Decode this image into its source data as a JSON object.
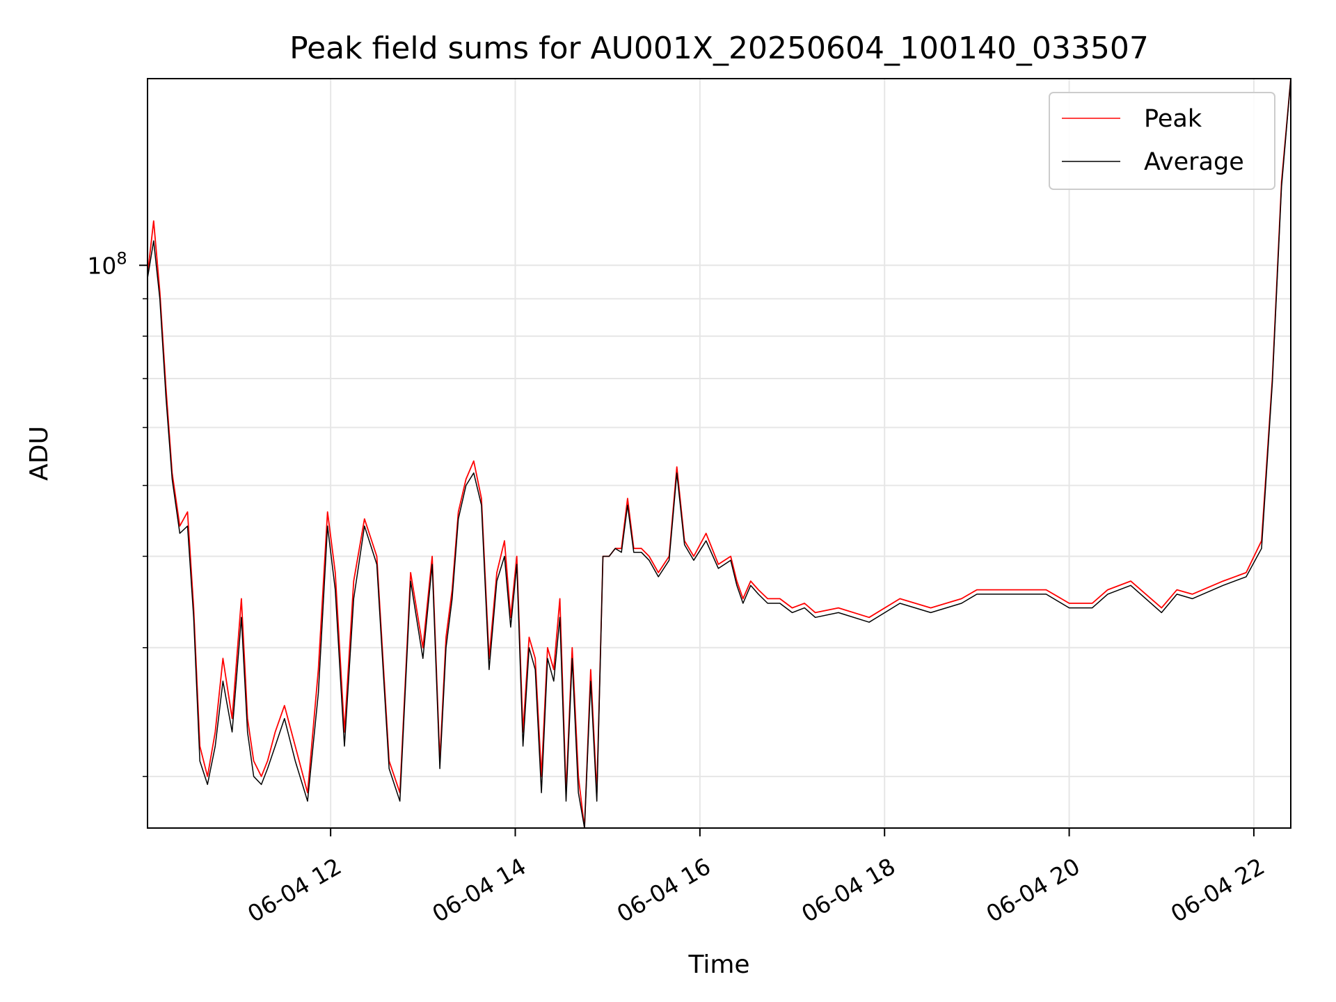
{
  "chart_data": {
    "type": "line",
    "title": "Peak field sums for AU001X_20250604_100140_033507",
    "xlabel": "Time",
    "ylabel": "ADU",
    "x_scale": "time",
    "y_scale": "log",
    "xlim": [
      "06-04 10:01",
      "06-04 22:24"
    ],
    "ylim": [
      17000000,
      180000000
    ],
    "x_ticks": [
      {
        "t": "06-04 12:00",
        "label": "06-04 12"
      },
      {
        "t": "06-04 14:00",
        "label": "06-04 14"
      },
      {
        "t": "06-04 16:00",
        "label": "06-04 16"
      },
      {
        "t": "06-04 18:00",
        "label": "06-04 18"
      },
      {
        "t": "06-04 20:00",
        "label": "06-04 20"
      },
      {
        "t": "06-04 22:00",
        "label": "06-04 22"
      }
    ],
    "y_major_ticks": [
      {
        "value": 100000000,
        "label": "10^8"
      }
    ],
    "grid": true,
    "legend_position": "top-right",
    "series": [
      {
        "name": "Peak",
        "color": "#ff0000",
        "x": [
          "06-04 10:01",
          "06-04 10:05",
          "06-04 10:09",
          "06-04 10:13",
          "06-04 10:17",
          "06-04 10:22",
          "06-04 10:27",
          "06-04 10:31",
          "06-04 10:35",
          "06-04 10:40",
          "06-04 10:45",
          "06-04 10:50",
          "06-04 10:56",
          "06-04 11:02",
          "06-04 11:06",
          "06-04 11:10",
          "06-04 11:15",
          "06-04 11:19",
          "06-04 11:24",
          "06-04 11:30",
          "06-04 11:37",
          "06-04 11:45",
          "06-04 11:52",
          "06-04 11:58",
          "06-04 12:03",
          "06-04 12:09",
          "06-04 12:15",
          "06-04 12:22",
          "06-04 12:30",
          "06-04 12:38",
          "06-04 12:45",
          "06-04 12:52",
          "06-04 13:00",
          "06-04 13:06",
          "06-04 13:11",
          "06-04 13:15",
          "06-04 13:19",
          "06-04 13:23",
          "06-04 13:28",
          "06-04 13:33",
          "06-04 13:38",
          "06-04 13:43",
          "06-04 13:48",
          "06-04 13:53",
          "06-04 13:57",
          "06-04 14:01",
          "06-04 14:05",
          "06-04 14:09",
          "06-04 14:13",
          "06-04 14:17",
          "06-04 14:21",
          "06-04 14:25",
          "06-04 14:29",
          "06-04 14:33",
          "06-04 14:37",
          "06-04 14:41",
          "06-04 14:45",
          "06-04 14:49",
          "06-04 14:53",
          "06-04 14:57",
          "06-04 15:01",
          "06-04 15:05",
          "06-04 15:09",
          "06-04 15:13",
          "06-04 15:17",
          "06-04 15:22",
          "06-04 15:27",
          "06-04 15:33",
          "06-04 15:40",
          "06-04 15:45",
          "06-04 15:50",
          "06-04 15:56",
          "06-04 16:04",
          "06-04 16:12",
          "06-04 16:20",
          "06-04 16:24",
          "06-04 16:28",
          "06-04 16:33",
          "06-04 16:38",
          "06-04 16:44",
          "06-04 16:52",
          "06-04 17:00",
          "06-04 17:08",
          "06-04 17:15",
          "06-04 17:30",
          "06-04 17:50",
          "06-04 18:10",
          "06-04 18:30",
          "06-04 18:50",
          "06-04 19:00",
          "06-04 19:10",
          "06-04 19:30",
          "06-04 19:45",
          "06-04 20:00",
          "06-04 20:15",
          "06-04 20:25",
          "06-04 20:40",
          "06-04 21:00",
          "06-04 21:10",
          "06-04 21:20",
          "06-04 21:40",
          "06-04 21:55",
          "06-04 22:05",
          "06-04 22:12",
          "06-04 22:18",
          "06-04 22:24"
        ],
        "values": [
          97000000,
          115000000,
          92000000,
          68000000,
          52000000,
          44000000,
          46000000,
          34000000,
          22000000,
          20000000,
          23000000,
          29000000,
          24000000,
          35000000,
          24000000,
          21000000,
          20000000,
          21000000,
          23000000,
          25000000,
          22000000,
          19000000,
          28000000,
          46000000,
          38000000,
          23000000,
          37000000,
          45000000,
          40000000,
          21000000,
          19000000,
          38000000,
          30000000,
          40000000,
          21000000,
          31000000,
          36000000,
          46000000,
          51000000,
          54000000,
          48000000,
          29000000,
          38000000,
          42000000,
          33000000,
          40000000,
          23000000,
          31000000,
          29000000,
          20000000,
          30000000,
          28000000,
          35000000,
          19000000,
          30000000,
          20000000,
          17000000,
          28000000,
          19000000,
          40000000,
          40000000,
          41000000,
          41000000,
          48000000,
          41000000,
          41000000,
          40000000,
          38000000,
          40000000,
          53000000,
          42000000,
          40000000,
          43000000,
          39000000,
          40000000,
          37000000,
          35000000,
          37000000,
          36000000,
          35000000,
          35000000,
          34000000,
          34500000,
          33500000,
          34000000,
          33000000,
          35000000,
          34000000,
          35000000,
          36000000,
          36000000,
          36000000,
          36000000,
          34500000,
          34500000,
          36000000,
          37000000,
          34000000,
          36000000,
          35500000,
          37000000,
          38000000,
          42000000,
          70000000,
          130000000,
          180000000
        ]
      },
      {
        "name": "Average",
        "color": "#000000",
        "x": [
          "06-04 10:01",
          "06-04 10:05",
          "06-04 10:09",
          "06-04 10:13",
          "06-04 10:17",
          "06-04 10:22",
          "06-04 10:27",
          "06-04 10:31",
          "06-04 10:35",
          "06-04 10:40",
          "06-04 10:45",
          "06-04 10:50",
          "06-04 10:56",
          "06-04 11:02",
          "06-04 11:06",
          "06-04 11:10",
          "06-04 11:15",
          "06-04 11:19",
          "06-04 11:24",
          "06-04 11:30",
          "06-04 11:37",
          "06-04 11:45",
          "06-04 11:52",
          "06-04 11:58",
          "06-04 12:03",
          "06-04 12:09",
          "06-04 12:15",
          "06-04 12:22",
          "06-04 12:30",
          "06-04 12:38",
          "06-04 12:45",
          "06-04 12:52",
          "06-04 13:00",
          "06-04 13:06",
          "06-04 13:11",
          "06-04 13:15",
          "06-04 13:19",
          "06-04 13:23",
          "06-04 13:28",
          "06-04 13:33",
          "06-04 13:38",
          "06-04 13:43",
          "06-04 13:48",
          "06-04 13:53",
          "06-04 13:57",
          "06-04 14:01",
          "06-04 14:05",
          "06-04 14:09",
          "06-04 14:13",
          "06-04 14:17",
          "06-04 14:21",
          "06-04 14:25",
          "06-04 14:29",
          "06-04 14:33",
          "06-04 14:37",
          "06-04 14:41",
          "06-04 14:45",
          "06-04 14:49",
          "06-04 14:53",
          "06-04 14:57",
          "06-04 15:01",
          "06-04 15:05",
          "06-04 15:09",
          "06-04 15:13",
          "06-04 15:17",
          "06-04 15:22",
          "06-04 15:27",
          "06-04 15:33",
          "06-04 15:40",
          "06-04 15:45",
          "06-04 15:50",
          "06-04 15:56",
          "06-04 16:04",
          "06-04 16:12",
          "06-04 16:20",
          "06-04 16:24",
          "06-04 16:28",
          "06-04 16:33",
          "06-04 16:38",
          "06-04 16:44",
          "06-04 16:52",
          "06-04 17:00",
          "06-04 17:08",
          "06-04 17:15",
          "06-04 17:30",
          "06-04 17:50",
          "06-04 18:10",
          "06-04 18:30",
          "06-04 18:50",
          "06-04 19:00",
          "06-04 19:10",
          "06-04 19:30",
          "06-04 19:45",
          "06-04 20:00",
          "06-04 20:15",
          "06-04 20:25",
          "06-04 20:40",
          "06-04 21:00",
          "06-04 21:10",
          "06-04 21:20",
          "06-04 21:40",
          "06-04 21:55",
          "06-04 22:05",
          "06-04 22:12",
          "06-04 22:18",
          "06-04 22:24"
        ],
        "values": [
          96000000,
          108000000,
          90000000,
          66000000,
          51000000,
          43000000,
          44000000,
          33000000,
          21000000,
          19500000,
          22000000,
          27000000,
          23000000,
          33000000,
          23000000,
          20000000,
          19500000,
          20500000,
          22000000,
          24000000,
          21000000,
          18500000,
          26000000,
          44000000,
          36000000,
          22000000,
          35000000,
          44000000,
          39000000,
          20500000,
          18500000,
          37000000,
          29000000,
          39000000,
          20500000,
          30000000,
          35000000,
          45000000,
          50000000,
          52000000,
          47000000,
          28000000,
          37000000,
          40000000,
          32000000,
          39000000,
          22000000,
          30000000,
          28000000,
          19000000,
          29000000,
          27000000,
          33000000,
          18500000,
          29000000,
          19000000,
          16800000,
          27000000,
          18500000,
          40000000,
          40000000,
          41000000,
          40500000,
          47000000,
          40500000,
          40500000,
          39500000,
          37500000,
          39500000,
          52000000,
          41500000,
          39500000,
          42000000,
          38500000,
          39500000,
          36500000,
          34500000,
          36500000,
          35500000,
          34500000,
          34500000,
          33500000,
          34000000,
          33000000,
          33500000,
          32500000,
          34500000,
          33500000,
          34500000,
          35500000,
          35500000,
          35500000,
          35500000,
          34000000,
          34000000,
          35500000,
          36500000,
          33500000,
          35500000,
          35000000,
          36500000,
          37500000,
          41000000,
          69000000,
          128000000,
          180000000
        ]
      }
    ]
  }
}
